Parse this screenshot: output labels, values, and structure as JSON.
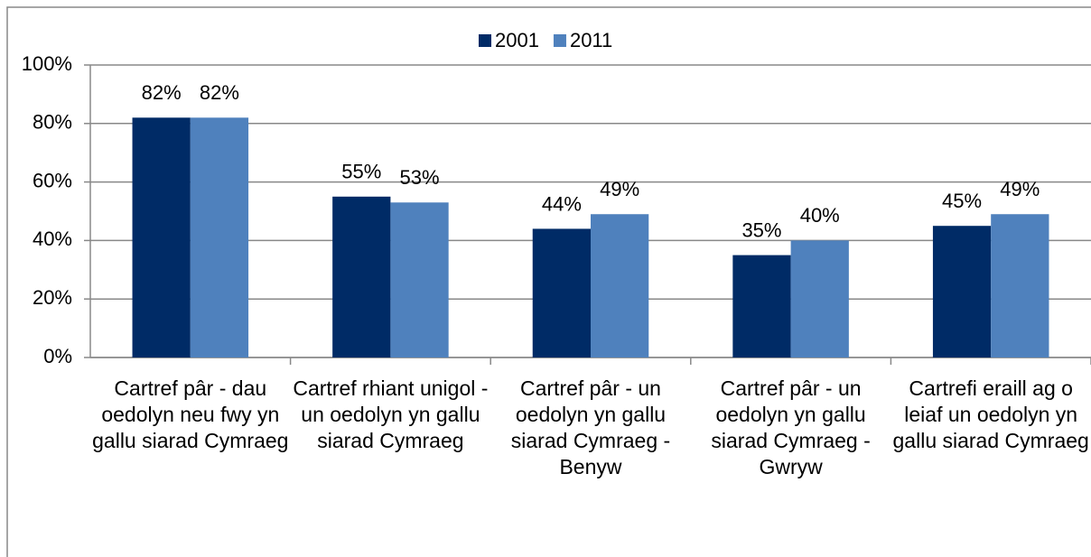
{
  "chart_data": {
    "type": "bar",
    "categories": [
      "Cartref pâr - dau oedolyn neu fwy yn gallu siarad Cymraeg",
      "Cartref rhiant unigol - un oedolyn yn gallu siarad Cymraeg",
      "Cartref pâr - un oedolyn yn gallu siarad Cymraeg - Benyw",
      "Cartref pâr - un oedolyn yn gallu siarad Cymraeg - Gwryw",
      "Cartrefi eraill ag o leiaf un oedolyn yn gallu siarad Cymraeg"
    ],
    "series": [
      {
        "name": "2001",
        "color": "#002b66",
        "values": [
          82,
          55,
          44,
          35,
          45
        ],
        "value_labels": [
          "82%",
          "55%",
          "44%",
          "35%",
          "45%"
        ]
      },
      {
        "name": "2011",
        "color": "#4f81bd",
        "values": [
          82,
          53,
          49,
          40,
          49
        ],
        "value_labels": [
          "82%",
          "53%",
          "49%",
          "40%",
          "49%"
        ]
      }
    ],
    "ylim": [
      0,
      100
    ],
    "yticks": [
      {
        "value": 0,
        "label": "0%"
      },
      {
        "value": 20,
        "label": "20%"
      },
      {
        "value": 40,
        "label": "40%"
      },
      {
        "value": 60,
        "label": "60%"
      },
      {
        "value": 80,
        "label": "80%"
      },
      {
        "value": 100,
        "label": "100%"
      }
    ],
    "grid": true,
    "legend": "top"
  }
}
